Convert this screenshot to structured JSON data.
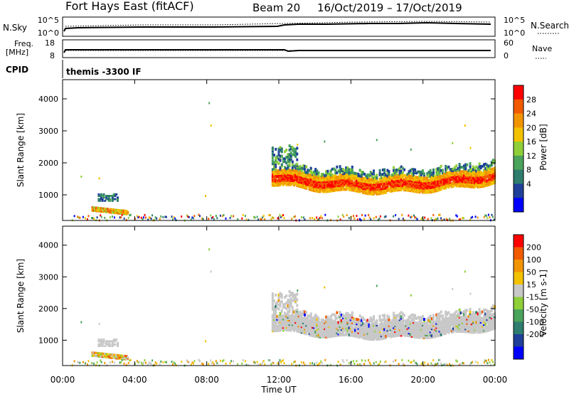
{
  "header": {
    "station": "Fort Hays East (fitACF)",
    "beam": "Beam 20",
    "date_range": "16/Oct/2019 – 17/Oct/2019"
  },
  "status_panels": {
    "nsky_label": "N.Sky",
    "nsky_ticks": [
      "10^5",
      "10^0"
    ],
    "nsearch_label": "N.Search",
    "freq_label_line1": "Freq.",
    "freq_label_line2": "[MHz]",
    "freq_ticks": [
      "18",
      "8"
    ],
    "nave_label": "Nave",
    "nave_ticks": [
      "60",
      "0"
    ],
    "cpid_label": "CPID",
    "cpid_value": "themis -3300 IF"
  },
  "colors": {
    "power_scale": [
      "#0000ff",
      "#1f3f99",
      "#2e7d6e",
      "#4aa35a",
      "#8fcf3a",
      "#f2c200",
      "#f29400",
      "#f25a00",
      "#ff0000"
    ],
    "velocity_scale": [
      "#0000ff",
      "#1f3f99",
      "#2e7d6e",
      "#4aa35a",
      "#8fcf3a",
      "#c8c8c8",
      "#f2c200",
      "#f29400",
      "#f25a00",
      "#ff0000"
    ]
  },
  "chart_data": [
    {
      "type": "heatmap",
      "ylabel": "Slant Range [km]",
      "xlim_hours": [
        0,
        24
      ],
      "ylim": [
        200,
        4600
      ],
      "yticks": [
        "1000",
        "2000",
        "3000",
        "4000"
      ],
      "colorbar": {
        "label": "Power [dB]",
        "ticks": [
          "28",
          "24",
          "20",
          "16",
          "12",
          "8",
          "4"
        ],
        "range": [
          0,
          32
        ]
      }
    },
    {
      "type": "heatmap",
      "ylabel": "Slant Range [km]",
      "xlabel": "Time UT",
      "xlim_hours": [
        0,
        24
      ],
      "ylim": [
        200,
        4600
      ],
      "yticks": [
        "1000",
        "2000",
        "3000",
        "4000"
      ],
      "xticks": [
        "00:00",
        "04:00",
        "08:00",
        "12:00",
        "16:00",
        "20:00",
        "00:00"
      ],
      "colorbar": {
        "label": "Velocity [m s-1]",
        "ticks": [
          "200",
          "100",
          "50",
          "15",
          "-15",
          "-50",
          "-100",
          "-200"
        ]
      }
    }
  ]
}
